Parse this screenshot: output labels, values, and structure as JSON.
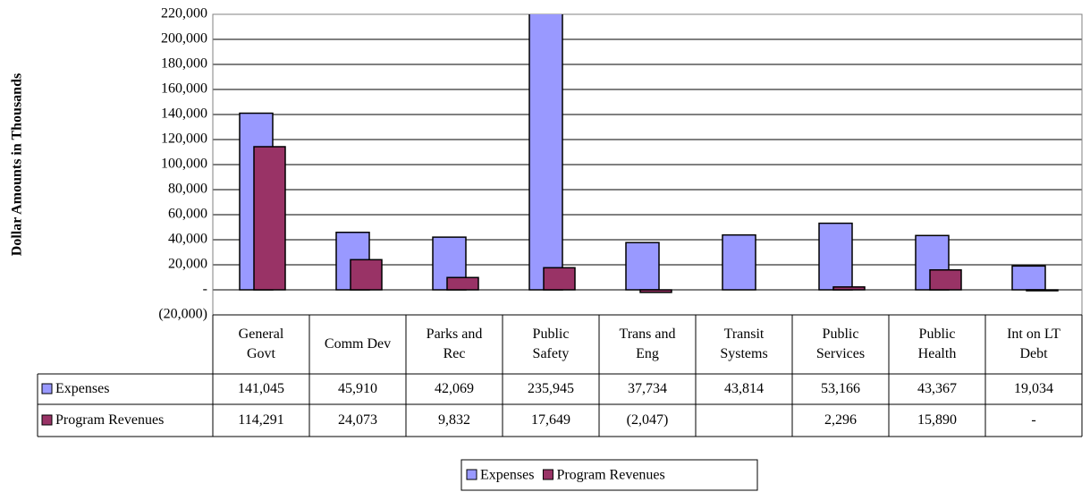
{
  "chart_data": {
    "type": "bar",
    "ylabel": "Dollar Amounts in Thousands",
    "categories": [
      "General\nGovt",
      "Comm Dev",
      "Parks and\nRec",
      "Public\nSafety",
      "Trans and\nEng",
      "Transit\nSystems",
      "Public\nServices",
      "Public\nHealth",
      "Int on LT\nDebt"
    ],
    "series": [
      {
        "name": "Expenses",
        "color": "#9999ff",
        "values": [
          141045,
          45910,
          42069,
          235945,
          37734,
          43814,
          53166,
          43367,
          19034
        ],
        "value_labels": [
          "141,045",
          "45,910",
          "42,069",
          "235,945",
          "37,734",
          "43,814",
          "53,166",
          "43,367",
          "19,034"
        ]
      },
      {
        "name": "Program Revenues",
        "color": "#993366",
        "values": [
          114291,
          24073,
          9832,
          17649,
          -2047,
          null,
          2296,
          15890,
          0
        ],
        "value_labels": [
          "114,291",
          "24,073",
          "9,832",
          "17,649",
          "(2,047)",
          null,
          "2,296",
          "15,890",
          "-"
        ]
      }
    ],
    "ylim": [
      -20000,
      220000
    ],
    "yticks": [
      {
        "value": -20000,
        "label": "(20,000)"
      },
      {
        "value": 0,
        "label": "-"
      },
      {
        "value": 20000,
        "label": "20,000"
      },
      {
        "value": 40000,
        "label": "40,000"
      },
      {
        "value": 60000,
        "label": "60,000"
      },
      {
        "value": 80000,
        "label": "80,000"
      },
      {
        "value": 100000,
        "label": "100,000"
      },
      {
        "value": 120000,
        "label": "120,000"
      },
      {
        "value": 140000,
        "label": "140,000"
      },
      {
        "value": 160000,
        "label": "160,000"
      },
      {
        "value": 180000,
        "label": "180,000"
      },
      {
        "value": 200000,
        "label": "200,000"
      },
      {
        "value": 220000,
        "label": "220,000"
      }
    ],
    "grid": true,
    "legend": "bottom"
  }
}
